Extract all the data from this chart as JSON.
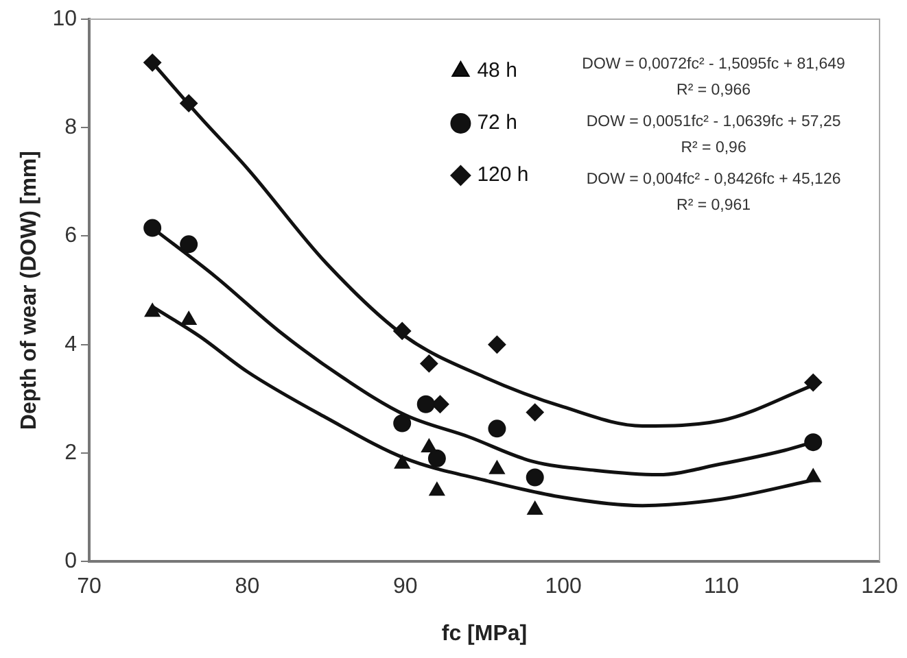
{
  "chart_data": {
    "type": "scatter",
    "xlabel": "fc [MPa]",
    "ylabel": "Depth of wear (DOW) [mm]",
    "xlim": [
      70,
      120
    ],
    "xticks": [
      70,
      80,
      90,
      100,
      110,
      120
    ],
    "ylim": [
      0,
      10
    ],
    "yticks": [
      0,
      2,
      4,
      6,
      8,
      10
    ],
    "grid": false,
    "legend": "top right",
    "annotations": [
      "DOW = 0,0072fc² - 1,5095fc + 81,649",
      "R² = 0,966",
      "DOW = 0,0051fc² - 1,0639fc + 57,25",
      "R² = 0,96",
      "DOW = 0,004fc² - 0,8426fc + 45,126",
      "R² = 0,961"
    ],
    "series": [
      {
        "name": "48 h",
        "type": "scatter",
        "marker": "triangle",
        "color": "#111111",
        "x": [
          74,
          76.3,
          89.8,
          91.5,
          92,
          95.8,
          98.2,
          115.8
        ],
        "values": [
          4.6,
          4.45,
          1.8,
          2.1,
          1.3,
          1.7,
          0.95,
          1.55
        ]
      },
      {
        "name": "72 h",
        "type": "scatter",
        "marker": "circle",
        "color": "#111111",
        "x": [
          74,
          76.3,
          89.8,
          91.3,
          92,
          95.8,
          98.2,
          115.8
        ],
        "values": [
          6.15,
          5.85,
          2.55,
          2.9,
          1.9,
          2.45,
          1.55,
          2.2
        ]
      },
      {
        "name": "120 h",
        "type": "scatter",
        "marker": "diamond",
        "color": "#111111",
        "x": [
          74,
          76.3,
          89.8,
          91.5,
          92.2,
          95.8,
          98.2,
          115.8
        ],
        "values": [
          9.2,
          8.45,
          4.25,
          3.65,
          2.9,
          4.0,
          2.75,
          3.3
        ]
      },
      {
        "type": "line",
        "marker": "none",
        "color": "#111111",
        "x": [
          74,
          77,
          80,
          85,
          90,
          95,
          100,
          105,
          110,
          115.8
        ],
        "values": [
          4.7,
          4.15,
          3.5,
          2.65,
          1.9,
          1.5,
          1.18,
          1.03,
          1.15,
          1.5
        ]
      },
      {
        "type": "line",
        "marker": "none",
        "color": "#111111",
        "x": [
          74,
          78,
          82,
          86,
          90,
          94,
          98,
          102,
          106,
          110,
          114,
          115.8
        ],
        "values": [
          6.15,
          5.25,
          4.25,
          3.4,
          2.7,
          2.3,
          1.85,
          1.68,
          1.6,
          1.8,
          2.05,
          2.2
        ]
      },
      {
        "type": "line",
        "marker": "none",
        "color": "#111111",
        "x": [
          74,
          77,
          80,
          85,
          90,
          95,
          100,
          105,
          110,
          115.8
        ],
        "values": [
          9.2,
          8.2,
          7.25,
          5.5,
          4.15,
          3.4,
          2.85,
          2.5,
          2.6,
          3.25
        ]
      }
    ]
  }
}
